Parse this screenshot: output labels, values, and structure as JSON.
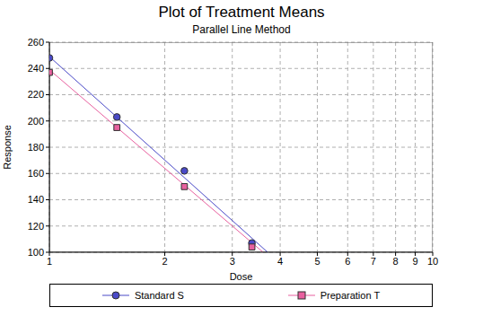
{
  "chart_data": {
    "type": "scatter",
    "title": "Plot of Treatment Means",
    "subtitle": "Parallel Line Method",
    "x_label": "Dose",
    "y_label": "Response",
    "log": "x",
    "grid": true,
    "legend": "bottom",
    "x": [
      1,
      1.5,
      2.25,
      3.375
    ],
    "series": [
      {
        "name": "Standard S",
        "color": "#4a4ac8",
        "marker": "circle",
        "values": [
          248,
          203,
          162,
          107
        ],
        "fit": {
          "x": [
            1,
            3.71
          ],
          "values": [
            249,
            100
          ]
        }
      },
      {
        "name": "Preparation T",
        "color": "#e8609f",
        "marker": "square",
        "values": [
          237,
          195,
          150,
          104
        ],
        "fit": {
          "x": [
            1,
            3.61
          ],
          "values": [
            239,
            100
          ]
        }
      }
    ],
    "xlim": [
      1,
      10
    ],
    "xticks": [
      1,
      2,
      3,
      4,
      5,
      6,
      7,
      8,
      9,
      10
    ],
    "ylim": [
      100,
      260
    ],
    "yticks": [
      100,
      120,
      140,
      160,
      180,
      200,
      220,
      240,
      260
    ]
  }
}
